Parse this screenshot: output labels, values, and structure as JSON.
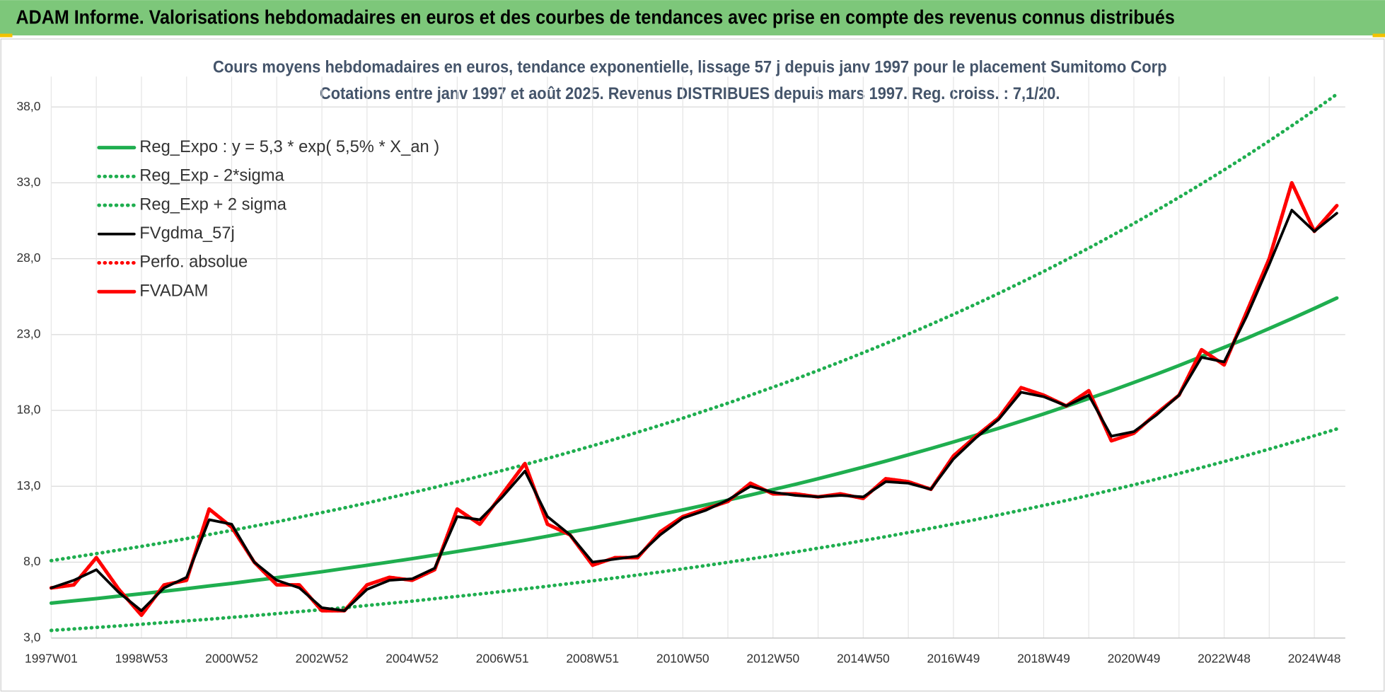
{
  "header": {
    "title": "ADAM Informe. Valorisations hebdomadaires en euros et des courbes de tendances avec prise en compte des revenus connus distribués"
  },
  "chart_data": {
    "type": "line",
    "title": "Cours moyens hebdomadaires en euros, tendance exponentielle, lissage 57 j depuis janv 1997 pour le placement Sumitomo Corp",
    "subtitle": "Cotations entre janv 1997 et août 2025.  Revenus DISTRIBUES depuis mars 1997. Reg. croiss. : 7,1/20.",
    "categories": [
      "1997W01",
      null,
      null,
      null,
      "1998W53",
      null,
      null,
      null,
      "2000W52",
      null,
      null,
      null,
      "2002W52",
      null,
      null,
      null,
      "2004W52",
      null,
      null,
      null,
      "2006W51",
      null,
      null,
      null,
      "2008W51",
      null,
      null,
      null,
      "2010W50",
      null,
      null,
      null,
      "2012W50",
      null,
      null,
      null,
      "2014W50",
      null,
      null,
      null,
      "2016W49",
      null,
      null,
      null,
      "2018W49",
      null,
      null,
      null,
      "2020W49",
      null,
      null,
      null,
      "2022W48",
      null,
      null,
      null,
      "2024W48",
      null
    ],
    "series": [
      {
        "name": "Reg_Expo : y = 5,3 * exp( 5,5% *  X_an )",
        "color": "#1fae4f",
        "style": "solid",
        "values": [
          5.3,
          5.45,
          5.6,
          5.76,
          5.92,
          6.08,
          6.25,
          6.43,
          6.6,
          6.79,
          6.98,
          7.17,
          7.37,
          7.58,
          7.79,
          8.01,
          8.23,
          8.46,
          8.7,
          8.94,
          9.19,
          9.44,
          9.71,
          9.98,
          10.25,
          10.54,
          10.83,
          11.14,
          11.45,
          11.77,
          12.09,
          12.43,
          12.78,
          13.13,
          13.5,
          13.88,
          14.26,
          14.66,
          15.07,
          15.49,
          15.92,
          16.37,
          16.82,
          17.29,
          17.77,
          18.27,
          18.78,
          19.3,
          19.84,
          20.39,
          20.96,
          21.55,
          22.15,
          22.76,
          23.4,
          24.05,
          24.72,
          25.41
        ]
      },
      {
        "name": "Reg_Exp - 2*sigma",
        "color": "#1fae4f",
        "style": "dotted",
        "values": [
          3.5,
          3.6,
          3.7,
          3.8,
          3.91,
          4.02,
          4.13,
          4.24,
          4.36,
          4.48,
          4.61,
          4.74,
          4.87,
          5.0,
          5.14,
          5.29,
          5.43,
          5.59,
          5.74,
          5.9,
          6.07,
          6.24,
          6.41,
          6.59,
          6.77,
          6.96,
          7.15,
          7.35,
          7.56,
          7.77,
          7.99,
          8.21,
          8.44,
          8.67,
          8.92,
          9.16,
          9.42,
          9.68,
          9.95,
          10.23,
          10.51,
          10.81,
          11.11,
          11.42,
          11.74,
          12.06,
          12.4,
          12.75,
          13.1,
          13.47,
          13.84,
          14.23,
          14.63,
          15.03,
          15.45,
          15.88,
          16.33,
          16.78
        ]
      },
      {
        "name": "Reg_Exp + 2 sigma",
        "color": "#1fae4f",
        "style": "dotted",
        "values": [
          8.1,
          8.33,
          8.56,
          8.8,
          9.04,
          9.29,
          9.55,
          9.82,
          10.09,
          10.38,
          10.66,
          10.96,
          11.27,
          11.58,
          11.9,
          12.24,
          12.58,
          12.93,
          13.29,
          13.66,
          14.04,
          14.43,
          14.83,
          15.25,
          15.67,
          16.11,
          16.56,
          17.02,
          17.49,
          17.98,
          18.48,
          19.0,
          19.53,
          20.07,
          20.63,
          21.21,
          21.8,
          22.41,
          23.03,
          23.67,
          24.33,
          25.01,
          25.71,
          26.43,
          27.16,
          27.92,
          28.7,
          29.5,
          30.32,
          31.17,
          32.04,
          32.93,
          33.85,
          34.79,
          35.76,
          36.76,
          37.78,
          38.84
        ]
      },
      {
        "name": "FVgdma_57j",
        "color": "#000000",
        "style": "solid",
        "values": [
          6.3,
          6.8,
          7.5,
          6.0,
          4.8,
          6.3,
          7.0,
          10.8,
          10.5,
          8.0,
          6.8,
          6.3,
          5.0,
          4.8,
          6.2,
          6.8,
          6.9,
          7.6,
          11.0,
          10.8,
          12.3,
          14.0,
          11.0,
          9.8,
          8.0,
          8.2,
          8.4,
          9.8,
          10.9,
          11.4,
          12.1,
          13.0,
          12.6,
          12.4,
          12.3,
          12.4,
          12.3,
          13.3,
          13.2,
          12.8,
          14.8,
          16.2,
          17.4,
          19.2,
          18.9,
          18.3,
          19.0,
          16.3,
          16.6,
          17.7,
          19.0,
          21.5,
          21.2,
          24.2,
          27.6,
          31.2,
          29.8,
          31.0
        ]
      },
      {
        "name": "Perfo. absolue",
        "color": "#ff0000",
        "style": "dotted",
        "values": [
          6.3,
          6.5,
          8.3,
          6.2,
          4.5,
          6.5,
          6.8,
          11.5,
          10.3,
          8.0,
          6.5,
          6.5,
          4.8,
          4.8,
          6.5,
          7.0,
          6.8,
          7.5,
          11.5,
          10.5,
          12.5,
          14.5,
          10.5,
          9.8,
          7.8,
          8.3,
          8.3,
          10.0,
          11.0,
          11.5,
          12.0,
          13.2,
          12.5,
          12.5,
          12.3,
          12.5,
          12.2,
          13.5,
          13.3,
          12.8,
          15.0,
          16.3,
          17.5,
          19.5,
          19.0,
          18.3,
          19.3,
          16.0,
          16.5,
          17.8,
          19.0,
          22.0,
          21.0,
          24.5,
          28.0,
          33.0,
          29.8,
          31.5
        ]
      },
      {
        "name": "FVADAM",
        "color": "#ff0000",
        "style": "solid",
        "values": [
          6.3,
          6.5,
          8.3,
          6.2,
          4.5,
          6.5,
          6.8,
          11.5,
          10.3,
          8.0,
          6.5,
          6.5,
          4.8,
          4.8,
          6.5,
          7.0,
          6.8,
          7.5,
          11.5,
          10.5,
          12.5,
          14.5,
          10.5,
          9.8,
          7.8,
          8.3,
          8.3,
          10.0,
          11.0,
          11.5,
          12.0,
          13.2,
          12.5,
          12.5,
          12.3,
          12.5,
          12.2,
          13.5,
          13.3,
          12.8,
          15.0,
          16.3,
          17.5,
          19.5,
          19.0,
          18.3,
          19.3,
          16.0,
          16.5,
          17.8,
          19.0,
          22.0,
          21.0,
          24.5,
          28.0,
          33.0,
          29.8,
          31.5
        ]
      }
    ],
    "ylim": [
      3,
      40
    ],
    "yticks": [
      {
        "value": 3,
        "label": "3,0"
      },
      {
        "value": 8,
        "label": "8,0"
      },
      {
        "value": 13,
        "label": "13,0"
      },
      {
        "value": 18,
        "label": "18,0"
      },
      {
        "value": 23,
        "label": "23,0"
      },
      {
        "value": 28,
        "label": "28,0"
      },
      {
        "value": 33,
        "label": "33,0"
      },
      {
        "value": 38,
        "label": "38,0"
      }
    ],
    "grid": true,
    "legend": "top-left"
  }
}
